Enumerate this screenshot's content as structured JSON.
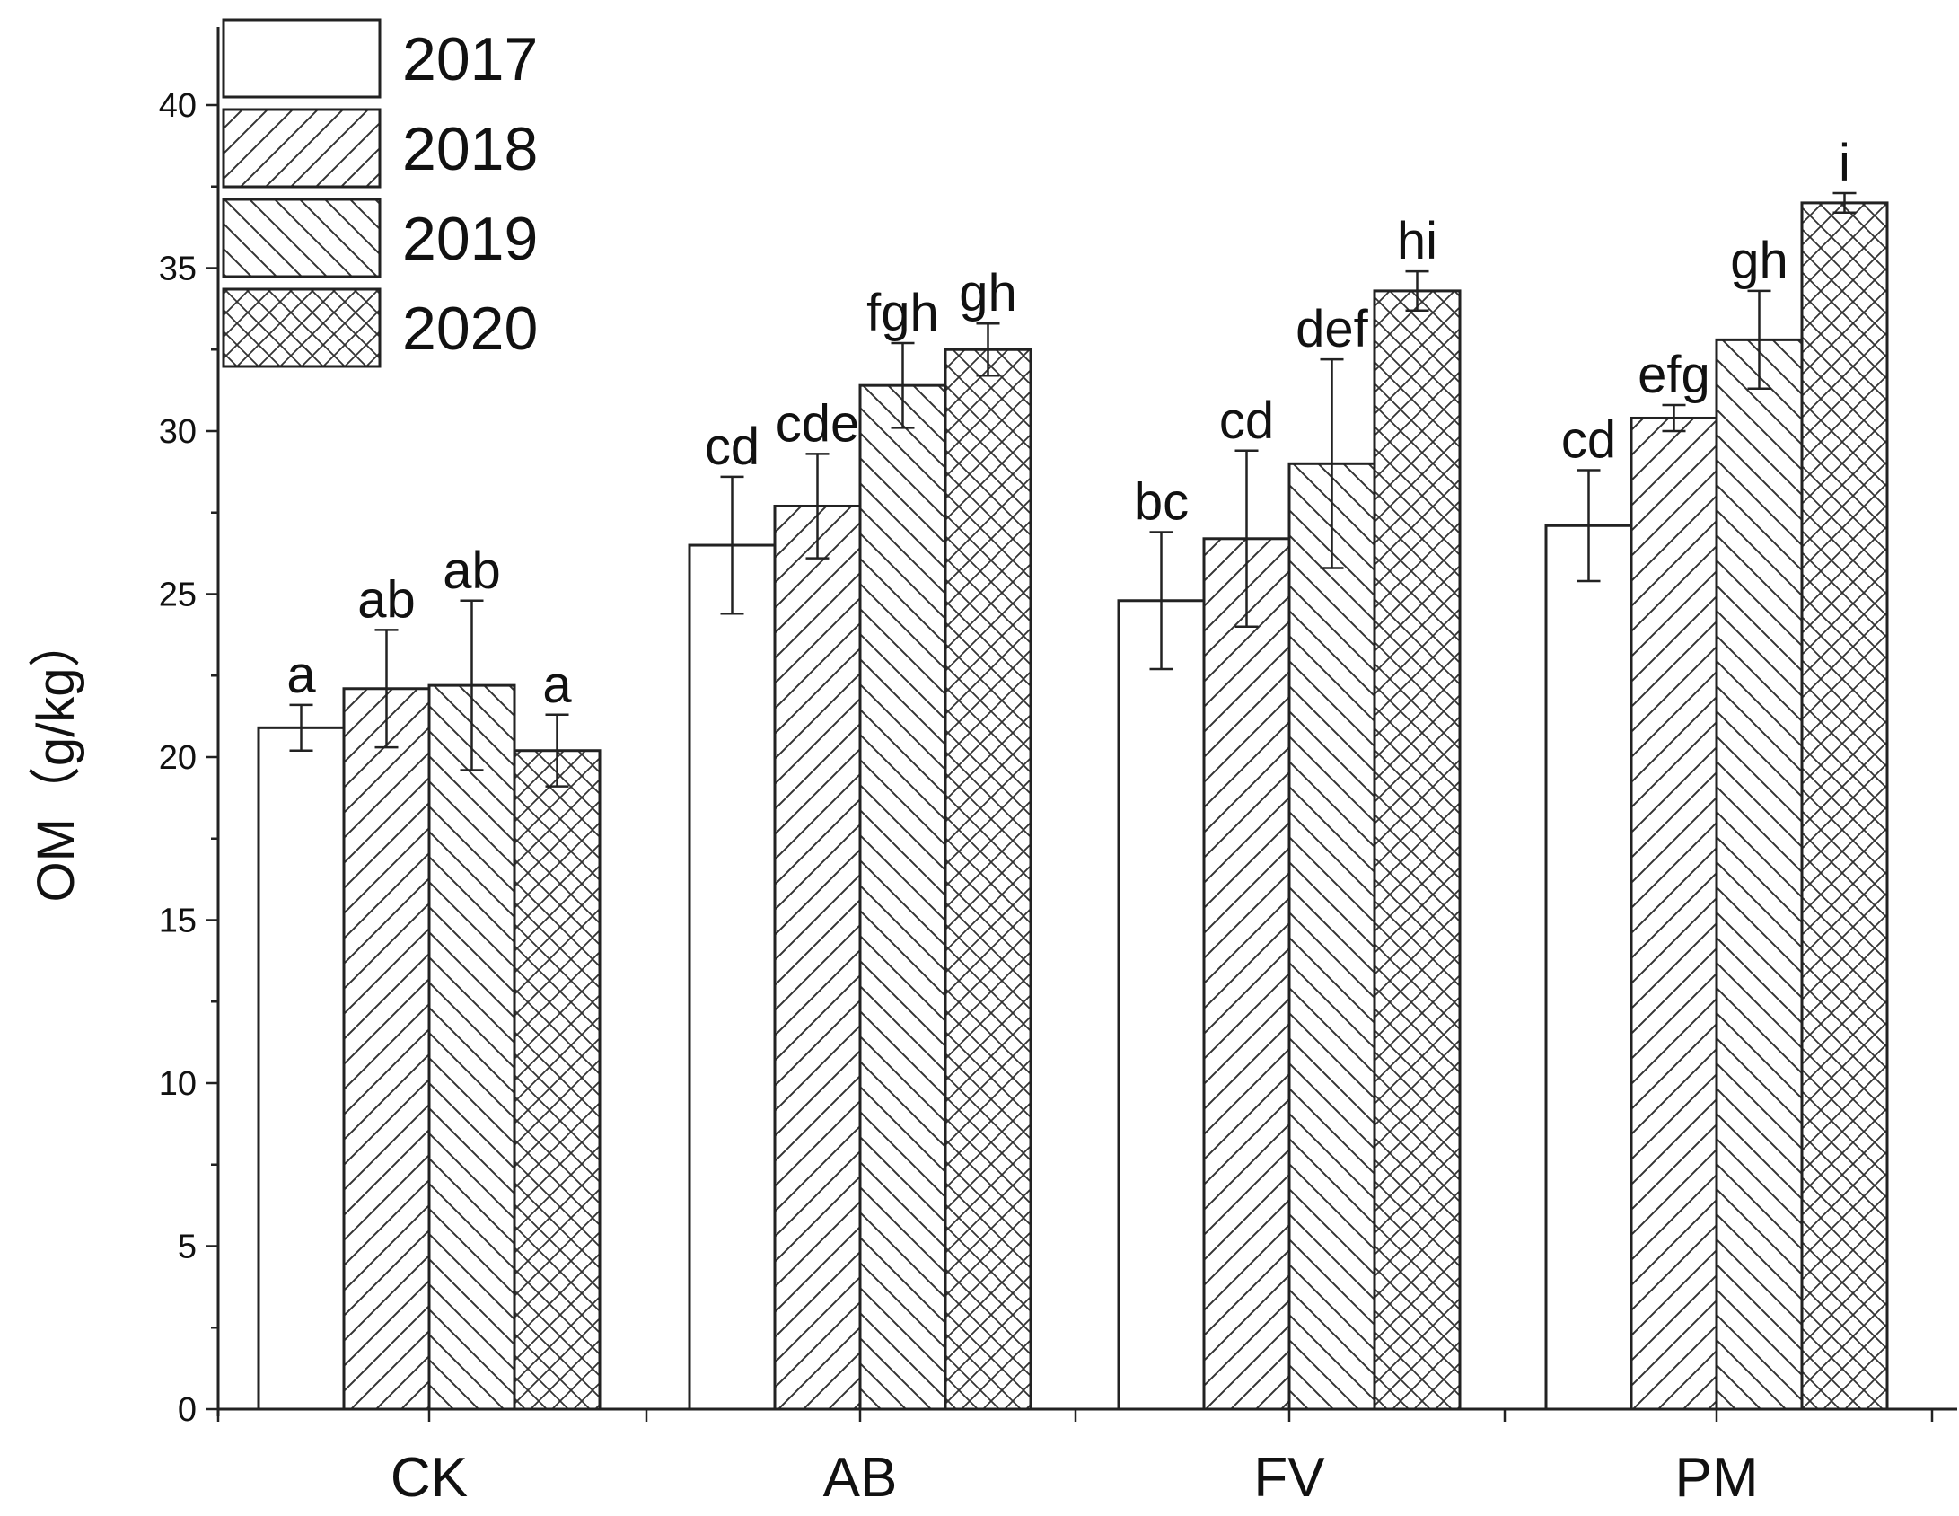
{
  "chart_data": {
    "type": "bar",
    "title": "",
    "xlabel": "",
    "ylabel": "OM（g/kg）",
    "ylim": [
      0,
      42
    ],
    "yticks": [
      0,
      5,
      10,
      15,
      20,
      25,
      30,
      35,
      40
    ],
    "categories": [
      "CK",
      "AB",
      "FV",
      "PM"
    ],
    "legend_position": "top-left",
    "series": [
      {
        "name": "2017",
        "pattern": "none",
        "values": [
          20.9,
          26.5,
          24.8,
          27.1
        ],
        "errors": [
          0.7,
          2.1,
          2.1,
          1.7
        ],
        "letters": [
          "a",
          "cd",
          "bc",
          "cd"
        ]
      },
      {
        "name": "2018",
        "pattern": "diagonal-up",
        "values": [
          22.1,
          27.7,
          26.7,
          30.4
        ],
        "errors": [
          1.8,
          1.6,
          2.7,
          0.4
        ],
        "letters": [
          "ab",
          "cde",
          "cd",
          "efg"
        ]
      },
      {
        "name": "2019",
        "pattern": "diagonal-down",
        "values": [
          22.2,
          31.4,
          29.0,
          32.8
        ],
        "errors": [
          2.6,
          1.3,
          3.2,
          1.5
        ],
        "letters": [
          "ab",
          "fgh",
          "def",
          "gh"
        ]
      },
      {
        "name": "2020",
        "pattern": "crosshatch",
        "values": [
          20.2,
          32.5,
          34.3,
          37.0
        ],
        "errors": [
          1.1,
          0.8,
          0.6,
          0.3
        ],
        "letters": [
          "a",
          "gh",
          "hi",
          "i"
        ]
      }
    ],
    "colors": {
      "stroke": "#222222",
      "fill": "#ffffff"
    }
  }
}
